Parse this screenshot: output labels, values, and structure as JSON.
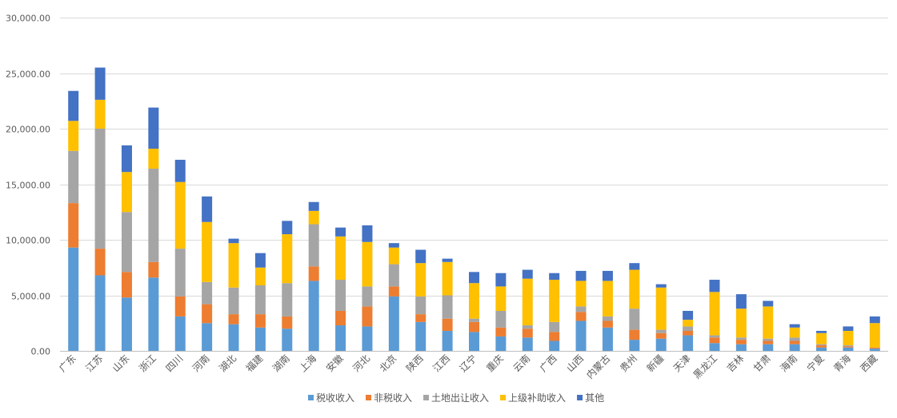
{
  "chart_data": {
    "type": "bar",
    "stacked": true,
    "title": "",
    "xlabel": "",
    "ylabel": "",
    "ylim": [
      0,
      30000
    ],
    "yticks": [
      0,
      5000,
      10000,
      15000,
      20000,
      25000,
      30000
    ],
    "ytick_labels": [
      "0.00",
      "5,000.00",
      "10,000.00",
      "15,000.00",
      "20,000.00",
      "25,000.00",
      "30,000.00"
    ],
    "grid": true,
    "legend_position": "bottom",
    "categories": [
      "广东",
      "江苏",
      "山东",
      "浙江",
      "四川",
      "河南",
      "湖北",
      "福建",
      "湖南",
      "上海",
      "安徽",
      "河北",
      "北京",
      "陕西",
      "江西",
      "辽宁",
      "重庆",
      "云南",
      "广西",
      "山西",
      "内蒙古",
      "贵州",
      "新疆",
      "天津",
      "黑龙江",
      "吉林",
      "甘肃",
      "海南",
      "宁夏",
      "青海",
      "西藏"
    ],
    "series": [
      {
        "name": "税收收入",
        "color": "#5b9bd5",
        "values": [
          9300,
          6800,
          4800,
          6600,
          3100,
          2500,
          2400,
          2100,
          2000,
          6300,
          2300,
          2200,
          4900,
          2600,
          1800,
          1700,
          1300,
          1200,
          900,
          2700,
          2100,
          1000,
          1100,
          1400,
          700,
          600,
          600,
          600,
          300,
          300,
          200
        ]
      },
      {
        "name": "非税收入",
        "color": "#ed7d31",
        "values": [
          4000,
          2400,
          2300,
          1400,
          1800,
          1700,
          900,
          1200,
          1100,
          1300,
          1300,
          1800,
          900,
          700,
          1100,
          900,
          800,
          800,
          800,
          800,
          600,
          900,
          500,
          400,
          500,
          400,
          300,
          300,
          200,
          100,
          100
        ]
      },
      {
        "name": "土地出让收入",
        "color": "#a5a5a5",
        "values": [
          4700,
          10800,
          5400,
          8400,
          4300,
          2000,
          2400,
          2600,
          3000,
          3800,
          2800,
          1800,
          2000,
          1600,
          2100,
          300,
          1500,
          300,
          900,
          500,
          400,
          1900,
          300,
          400,
          200,
          200,
          200,
          300,
          100,
          100,
          0
        ]
      },
      {
        "name": "上级补助收入",
        "color": "#ffc000",
        "values": [
          2700,
          2600,
          3600,
          1800,
          6000,
          5400,
          4000,
          1600,
          4400,
          1200,
          3900,
          4000,
          1500,
          3000,
          3000,
          3200,
          2200,
          4200,
          3800,
          2300,
          3200,
          3500,
          3800,
          600,
          3900,
          2600,
          2900,
          900,
          1000,
          1300,
          2200
        ]
      },
      {
        "name": "其他",
        "color": "#4472c4",
        "values": [
          2700,
          2900,
          2400,
          3700,
          2000,
          2300,
          400,
          1300,
          1200,
          800,
          800,
          1500,
          400,
          1200,
          300,
          1000,
          1200,
          800,
          600,
          900,
          900,
          600,
          300,
          800,
          1100,
          1300,
          500,
          300,
          200,
          400,
          600
        ]
      }
    ]
  }
}
